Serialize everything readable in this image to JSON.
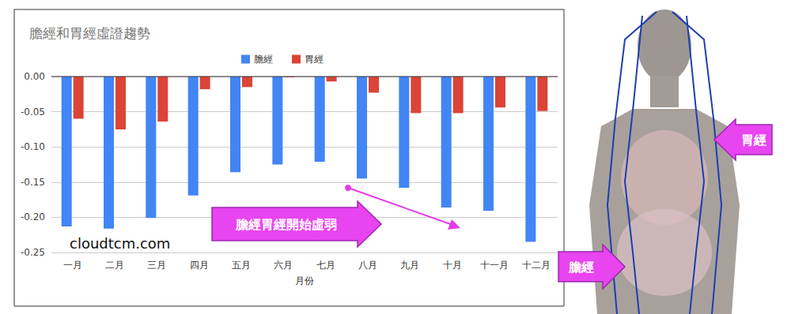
{
  "chart_data": {
    "type": "bar",
    "title": "膽經和胃經虛證趨勢",
    "x_label": "月份",
    "categories": [
      "一月",
      "二月",
      "三月",
      "四月",
      "五月",
      "六月",
      "七月",
      "八月",
      "九月",
      "十月",
      "十一月",
      "十二月"
    ],
    "series": [
      {
        "name": "膽經",
        "color": "#4285f4",
        "values": [
          -0.213,
          -0.216,
          -0.201,
          -0.169,
          -0.136,
          -0.125,
          -0.121,
          -0.145,
          -0.158,
          -0.186,
          -0.191,
          -0.235
        ]
      },
      {
        "name": "胃經",
        "color": "#db4437",
        "values": [
          -0.06,
          -0.075,
          -0.064,
          -0.018,
          -0.015,
          -0.001,
          -0.007,
          -0.023,
          -0.052,
          -0.052,
          -0.044,
          -0.049
        ]
      }
    ],
    "ylim": [
      -0.25,
      0
    ],
    "yticks": [
      -0.25,
      {
        "value": -0.2,
        "label": "-0.20"
      },
      -0.15,
      {
        "value": -0.1,
        "label": "-0.10"
      },
      -0.05,
      {
        "value": 0,
        "label": "0.00"
      }
    ],
    "grid": true,
    "legend": "top",
    "annotations": [
      "膽經胃經開始虛弱",
      "cloudtcm.com",
      "胃經",
      "膽經"
    ]
  }
}
